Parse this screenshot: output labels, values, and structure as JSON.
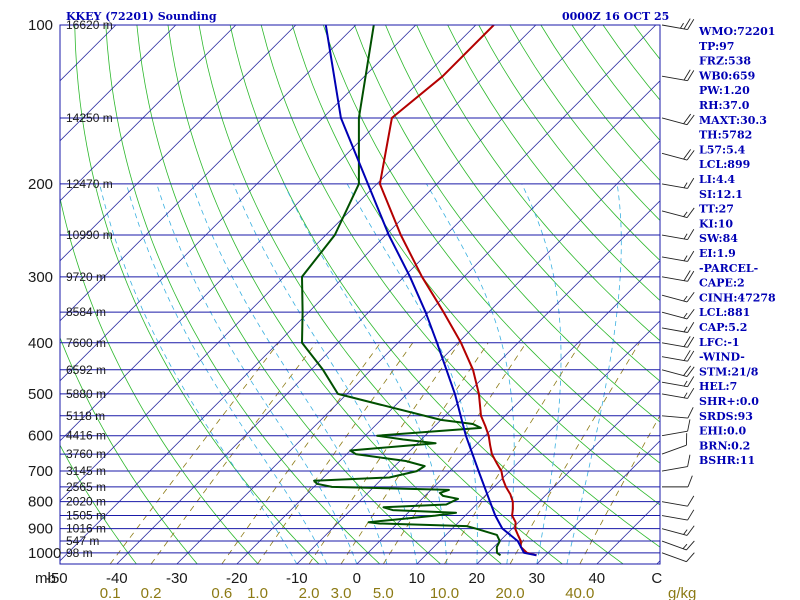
{
  "header": {
    "station": "KKEY (72201) Sounding",
    "time": "0000Z 16 OCT 25"
  },
  "colors": {
    "isobar": "#1a1aa8",
    "isotherm": "#2a2aa0",
    "dry_adiabat": "#2db82d",
    "moist_adiabat": "#3ab0e0",
    "mixing_ratio": "#8c7a14",
    "temperature": "#b40000",
    "dewpoint": "#005000",
    "parcel": "#0000b4",
    "labels": "#0000b4"
  },
  "chart_data": {
    "type": "line",
    "title": "KKEY (72201) Sounding",
    "subtitle": "0000Z 16 OCT 25",
    "pressure_levels": [
      100,
      200,
      300,
      400,
      500,
      600,
      700,
      800,
      900,
      1000
    ],
    "pressure_label_texts": [
      "100",
      "200",
      "300",
      "400",
      "500",
      "600",
      "700",
      "800",
      "900",
      "1000"
    ],
    "height_labels": [
      {
        "p": 100,
        "label": "16620 m"
      },
      {
        "p": 150,
        "label": "14250 m"
      },
      {
        "p": 200,
        "label": "12470 m"
      },
      {
        "p": 250,
        "label": "10990 m"
      },
      {
        "p": 300,
        "label": "9720 m"
      },
      {
        "p": 350,
        "label": "8584 m"
      },
      {
        "p": 400,
        "label": "7600 m"
      },
      {
        "p": 450,
        "label": "6592 m"
      },
      {
        "p": 500,
        "label": "5880 m"
      },
      {
        "p": 550,
        "label": "5118 m"
      },
      {
        "p": 600,
        "label": "4416 m"
      },
      {
        "p": 650,
        "label": "3760 m"
      },
      {
        "p": 700,
        "label": "3145 m"
      },
      {
        "p": 750,
        "label": "2565 m"
      },
      {
        "p": 800,
        "label": "2020 m"
      },
      {
        "p": 850,
        "label": "1505 m"
      },
      {
        "p": 900,
        "label": "1016 m"
      },
      {
        "p": 950,
        "label": "547 m"
      },
      {
        "p": 1000,
        "label": "98 m"
      }
    ],
    "x_unit_label": "mb",
    "temperature_ticks": [
      -50,
      -40,
      -30,
      -20,
      -10,
      0,
      10,
      20,
      30,
      40,
      50
    ],
    "temperature_tick_labels": [
      "-50",
      "-40",
      "-30",
      "-20",
      "-10",
      "0",
      "10",
      "20",
      "30",
      "40",
      "C"
    ],
    "mixing_ratio_ticks": [
      0.1,
      0.2,
      0.6,
      1.0,
      2.0,
      3.0,
      5.0,
      10.0,
      20.0,
      40.0
    ],
    "mixing_ratio_tick_labels": [
      "0.1",
      "0.2",
      "0.6",
      "1.0",
      "2.0",
      "3.0",
      "5.0",
      "10.0",
      "20.0",
      "40.0"
    ],
    "mixing_ratio_unit": "g/kg",
    "series": [
      {
        "role": "temperature",
        "points": [
          [
            1011,
            28.5
          ],
          [
            1000,
            26.5
          ],
          [
            975,
            24.5
          ],
          [
            950,
            23.5
          ],
          [
            925,
            22.0
          ],
          [
            900,
            20.5
          ],
          [
            875,
            19.5
          ],
          [
            850,
            17.8
          ],
          [
            825,
            16.8
          ],
          [
            800,
            15.6
          ],
          [
            775,
            14.0
          ],
          [
            750,
            12.0
          ],
          [
            725,
            10.2
          ],
          [
            700,
            8.6
          ],
          [
            675,
            6.4
          ],
          [
            650,
            4.2
          ],
          [
            625,
            2.4
          ],
          [
            600,
            0.6
          ],
          [
            575,
            -1.6
          ],
          [
            550,
            -4.0
          ],
          [
            500,
            -8.0
          ],
          [
            450,
            -13.0
          ],
          [
            400,
            -19.5
          ],
          [
            350,
            -27.5
          ],
          [
            300,
            -37.0
          ],
          [
            250,
            -47.5
          ],
          [
            200,
            -59.5
          ],
          [
            150,
            -68.5
          ],
          [
            125,
            -67.0
          ],
          [
            100,
            -67.0
          ]
        ]
      },
      {
        "role": "dewpoint",
        "points": [
          [
            1011,
            22.5
          ],
          [
            1000,
            21.5
          ],
          [
            975,
            20.5
          ],
          [
            950,
            20.0
          ],
          [
            925,
            18.5
          ],
          [
            900,
            14.0
          ],
          [
            890,
            12.0
          ],
          [
            880,
            -3.0
          ],
          [
            875,
            -5.0
          ],
          [
            865,
            -1.0
          ],
          [
            850,
            5.0
          ],
          [
            840,
            8.0
          ],
          [
            830,
            -3.0
          ],
          [
            820,
            -5.0
          ],
          [
            810,
            5.0
          ],
          [
            790,
            6.0
          ],
          [
            780,
            3.0
          ],
          [
            770,
            2.0
          ],
          [
            760,
            3.0
          ],
          [
            750,
            -17.0
          ],
          [
            740,
            -20.0
          ],
          [
            730,
            -21.0
          ],
          [
            720,
            -9.0
          ],
          [
            700,
            -5.5
          ],
          [
            685,
            -5.0
          ],
          [
            670,
            -9.0
          ],
          [
            650,
            -18.5
          ],
          [
            640,
            -20.0
          ],
          [
            620,
            -7.0
          ],
          [
            610,
            -13.0
          ],
          [
            600,
            -18.0
          ],
          [
            580,
            -2.0
          ],
          [
            570,
            -4.0
          ],
          [
            560,
            -10.0
          ],
          [
            500,
            -31.5
          ],
          [
            450,
            -38.0
          ],
          [
            400,
            -46.0
          ],
          [
            350,
            -51.0
          ],
          [
            300,
            -57.0
          ],
          [
            250,
            -58.5
          ],
          [
            200,
            -63.0
          ],
          [
            150,
            -74.0
          ],
          [
            100,
            -87.0
          ]
        ]
      },
      {
        "role": "parcel",
        "points": [
          [
            1011,
            28.5
          ],
          [
            1000,
            26.0
          ],
          [
            950,
            23.0
          ],
          [
            899,
            18.3
          ],
          [
            850,
            15.0
          ],
          [
            800,
            11.8
          ],
          [
            700,
            4.8
          ],
          [
            600,
            -3.2
          ],
          [
            500,
            -12.0
          ],
          [
            400,
            -23.5
          ],
          [
            350,
            -30.5
          ],
          [
            300,
            -39.0
          ],
          [
            250,
            -49.5
          ],
          [
            200,
            -61.5
          ],
          [
            150,
            -77.0
          ],
          [
            100,
            -95.0
          ]
        ]
      }
    ]
  },
  "indices": [
    "WMO:72201",
    "TP:97",
    "FRZ:538",
    "WB0:659",
    "PW:1.20",
    "RH:37.0",
    "MAXT:30.3",
    "TH:5782",
    "L57:5.4",
    "LCL:899",
    "LI:4.4",
    "SI:12.1",
    "TT:27",
    "KI:10",
    "SW:84",
    "EI:1.9",
    "-PARCEL-",
    "CAPE:2",
    "CINH:47278",
    "LCL:881",
    "CAP:5.2",
    "LFC:-1",
    "-WIND-",
    "STM:21/8",
    "HEL:7",
    "SHR+:0.0",
    "SRDS:93",
    "EHI:0.0",
    "BRN:0.2",
    "BSHR:11"
  ],
  "winds": [
    {
      "p": 100,
      "dir": 80,
      "spd": 25
    },
    {
      "p": 125,
      "dir": 80,
      "spd": 20
    },
    {
      "p": 150,
      "dir": 75,
      "spd": 20
    },
    {
      "p": 175,
      "dir": 75,
      "spd": 20
    },
    {
      "p": 200,
      "dir": 80,
      "spd": 15
    },
    {
      "p": 225,
      "dir": 75,
      "spd": 15
    },
    {
      "p": 250,
      "dir": 80,
      "spd": 15
    },
    {
      "p": 275,
      "dir": 80,
      "spd": 15
    },
    {
      "p": 300,
      "dir": 80,
      "spd": 20
    },
    {
      "p": 325,
      "dir": 75,
      "spd": 15
    },
    {
      "p": 350,
      "dir": 75,
      "spd": 15
    },
    {
      "p": 375,
      "dir": 80,
      "spd": 15
    },
    {
      "p": 400,
      "dir": 80,
      "spd": 20
    },
    {
      "p": 425,
      "dir": 80,
      "spd": 20
    },
    {
      "p": 450,
      "dir": 75,
      "spd": 20
    },
    {
      "p": 475,
      "dir": 80,
      "spd": 15
    },
    {
      "p": 500,
      "dir": 80,
      "spd": 15
    },
    {
      "p": 550,
      "dir": 85,
      "spd": 10
    },
    {
      "p": 600,
      "dir": 100,
      "spd": 10
    },
    {
      "p": 650,
      "dir": 110,
      "spd": 10
    },
    {
      "p": 700,
      "dir": 100,
      "spd": 10
    },
    {
      "p": 750,
      "dir": 90,
      "spd": 10
    },
    {
      "p": 800,
      "dir": 80,
      "spd": 10
    },
    {
      "p": 850,
      "dir": 80,
      "spd": 10
    },
    {
      "p": 900,
      "dir": 75,
      "spd": 15
    },
    {
      "p": 950,
      "dir": 70,
      "spd": 15
    },
    {
      "p": 1000,
      "dir": 70,
      "spd": 10
    }
  ]
}
